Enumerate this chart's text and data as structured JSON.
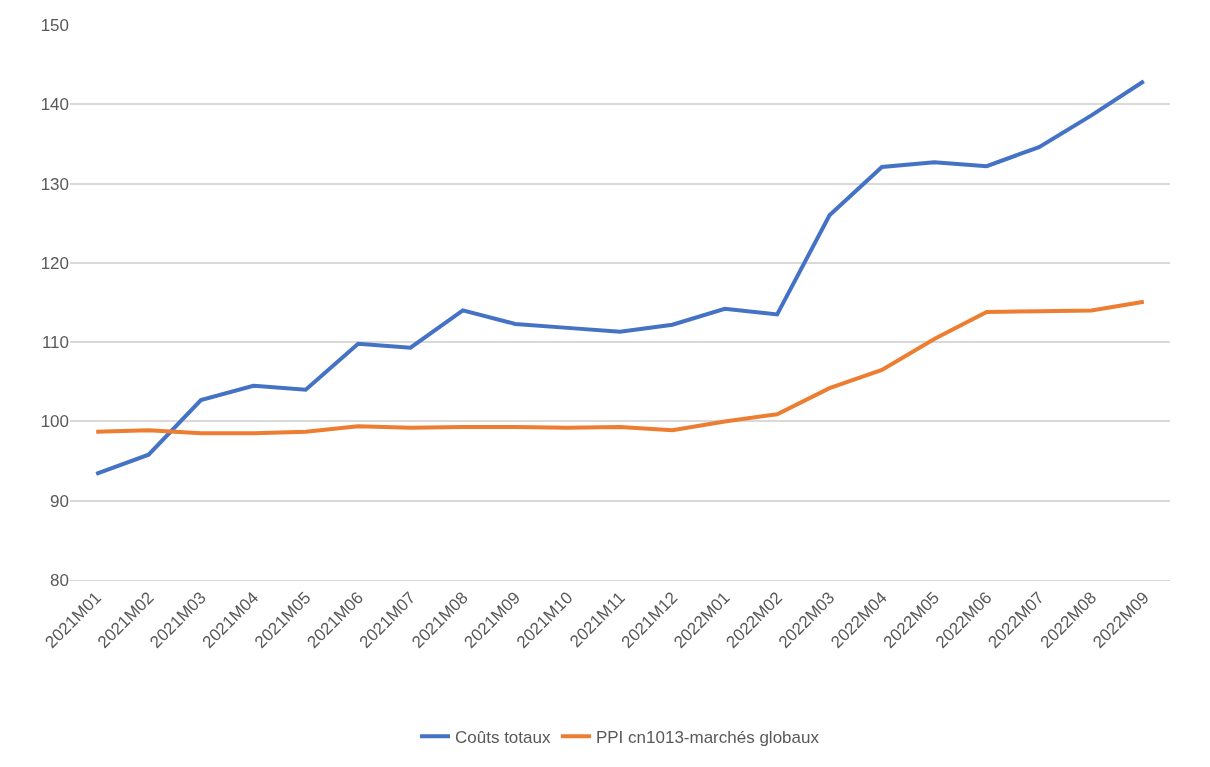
{
  "chart_data": {
    "type": "line",
    "categories": [
      "2021M01",
      "2021M02",
      "2021M03",
      "2021M04",
      "2021M05",
      "2021M06",
      "2021M07",
      "2021M08",
      "2021M09",
      "2021M10",
      "2021M11",
      "2021M12",
      "2022M01",
      "2022M02",
      "2022M03",
      "2022M04",
      "2022M05",
      "2022M06",
      "2022M07",
      "2022M08",
      "2022M09"
    ],
    "series": [
      {
        "name": "Coûts totaux",
        "color": "#4472c4",
        "values": [
          93.4,
          95.8,
          102.7,
          104.5,
          104.0,
          109.8,
          109.3,
          114.0,
          112.3,
          111.8,
          111.3,
          112.2,
          114.2,
          113.5,
          126.0,
          132.1,
          132.7,
          132.2,
          134.6,
          138.6,
          142.9
        ]
      },
      {
        "name": "PPI cn1013-marchés globaux",
        "color": "#ed7d31",
        "values": [
          98.7,
          98.9,
          98.5,
          98.5,
          98.7,
          99.4,
          99.2,
          99.3,
          99.3,
          99.2,
          99.3,
          98.9,
          100.0,
          100.9,
          104.2,
          106.5,
          110.4,
          113.8,
          113.9,
          114.0,
          115.1
        ]
      }
    ],
    "ylim": [
      80,
      150
    ],
    "yticks": [
      80,
      90,
      100,
      110,
      120,
      130,
      140,
      150
    ],
    "grid": "y",
    "legend": "bottom",
    "marker": "none",
    "line_style": "solid"
  }
}
